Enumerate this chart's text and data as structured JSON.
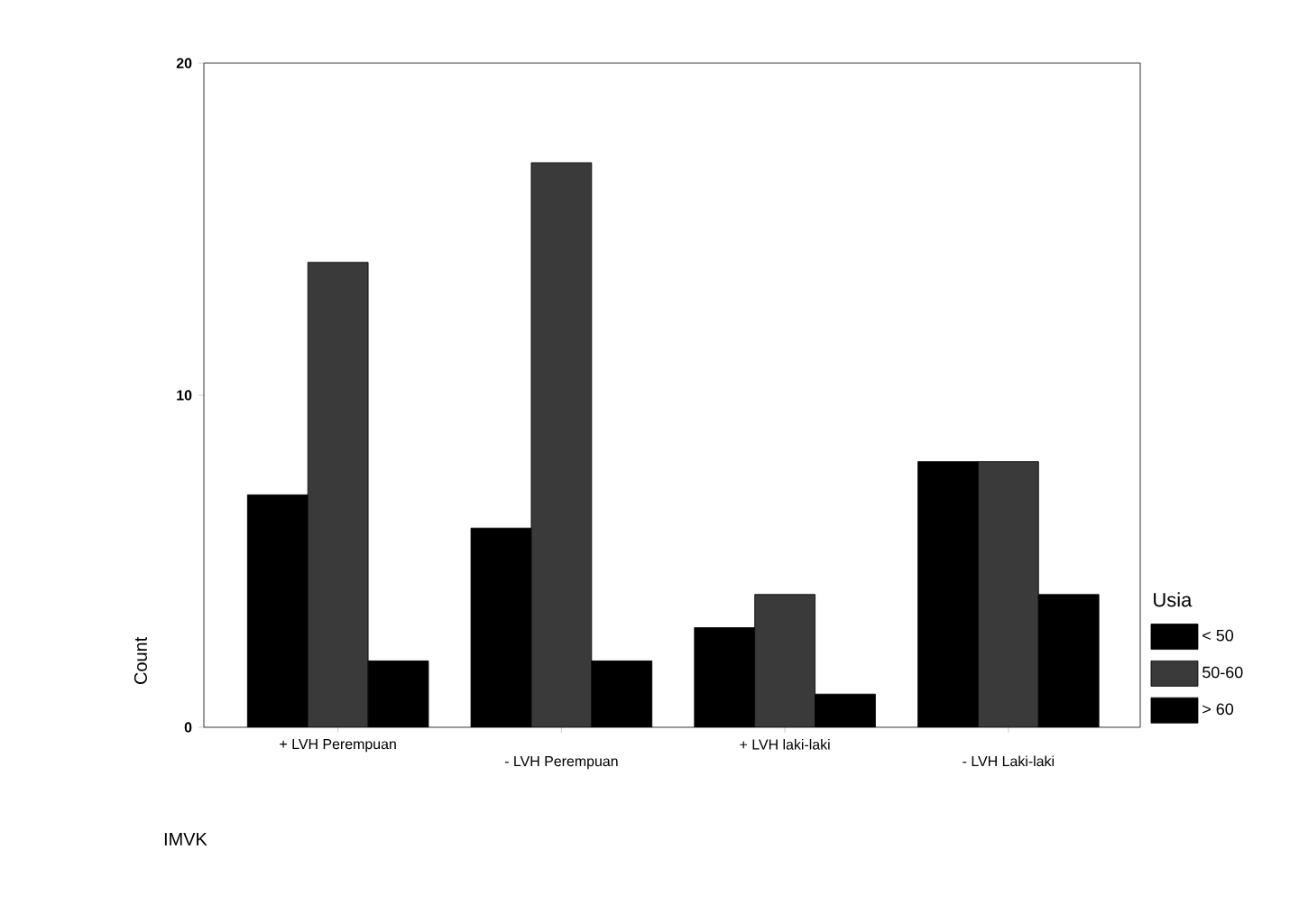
{
  "chart_data": {
    "type": "bar",
    "xlabel": "IMVK",
    "ylabel": "Count",
    "legend_title": "Usia",
    "categories": [
      "+ LVH Perempuan",
      "- LVH Perempuan",
      "+ LVH laki-laki",
      "- LVH Laki-laki"
    ],
    "series": [
      {
        "name": "< 50",
        "color": "#000000",
        "values": [
          7,
          6,
          3,
          8
        ]
      },
      {
        "name": "50-60",
        "color": "#3a3a3a",
        "values": [
          14,
          17,
          4,
          8
        ]
      },
      {
        "name": "> 60",
        "color": "#000000",
        "values": [
          2,
          2,
          1,
          4
        ]
      }
    ],
    "ylim": [
      0,
      20
    ],
    "yticks": [
      0,
      10,
      20
    ],
    "legend": "right",
    "grid": false
  }
}
